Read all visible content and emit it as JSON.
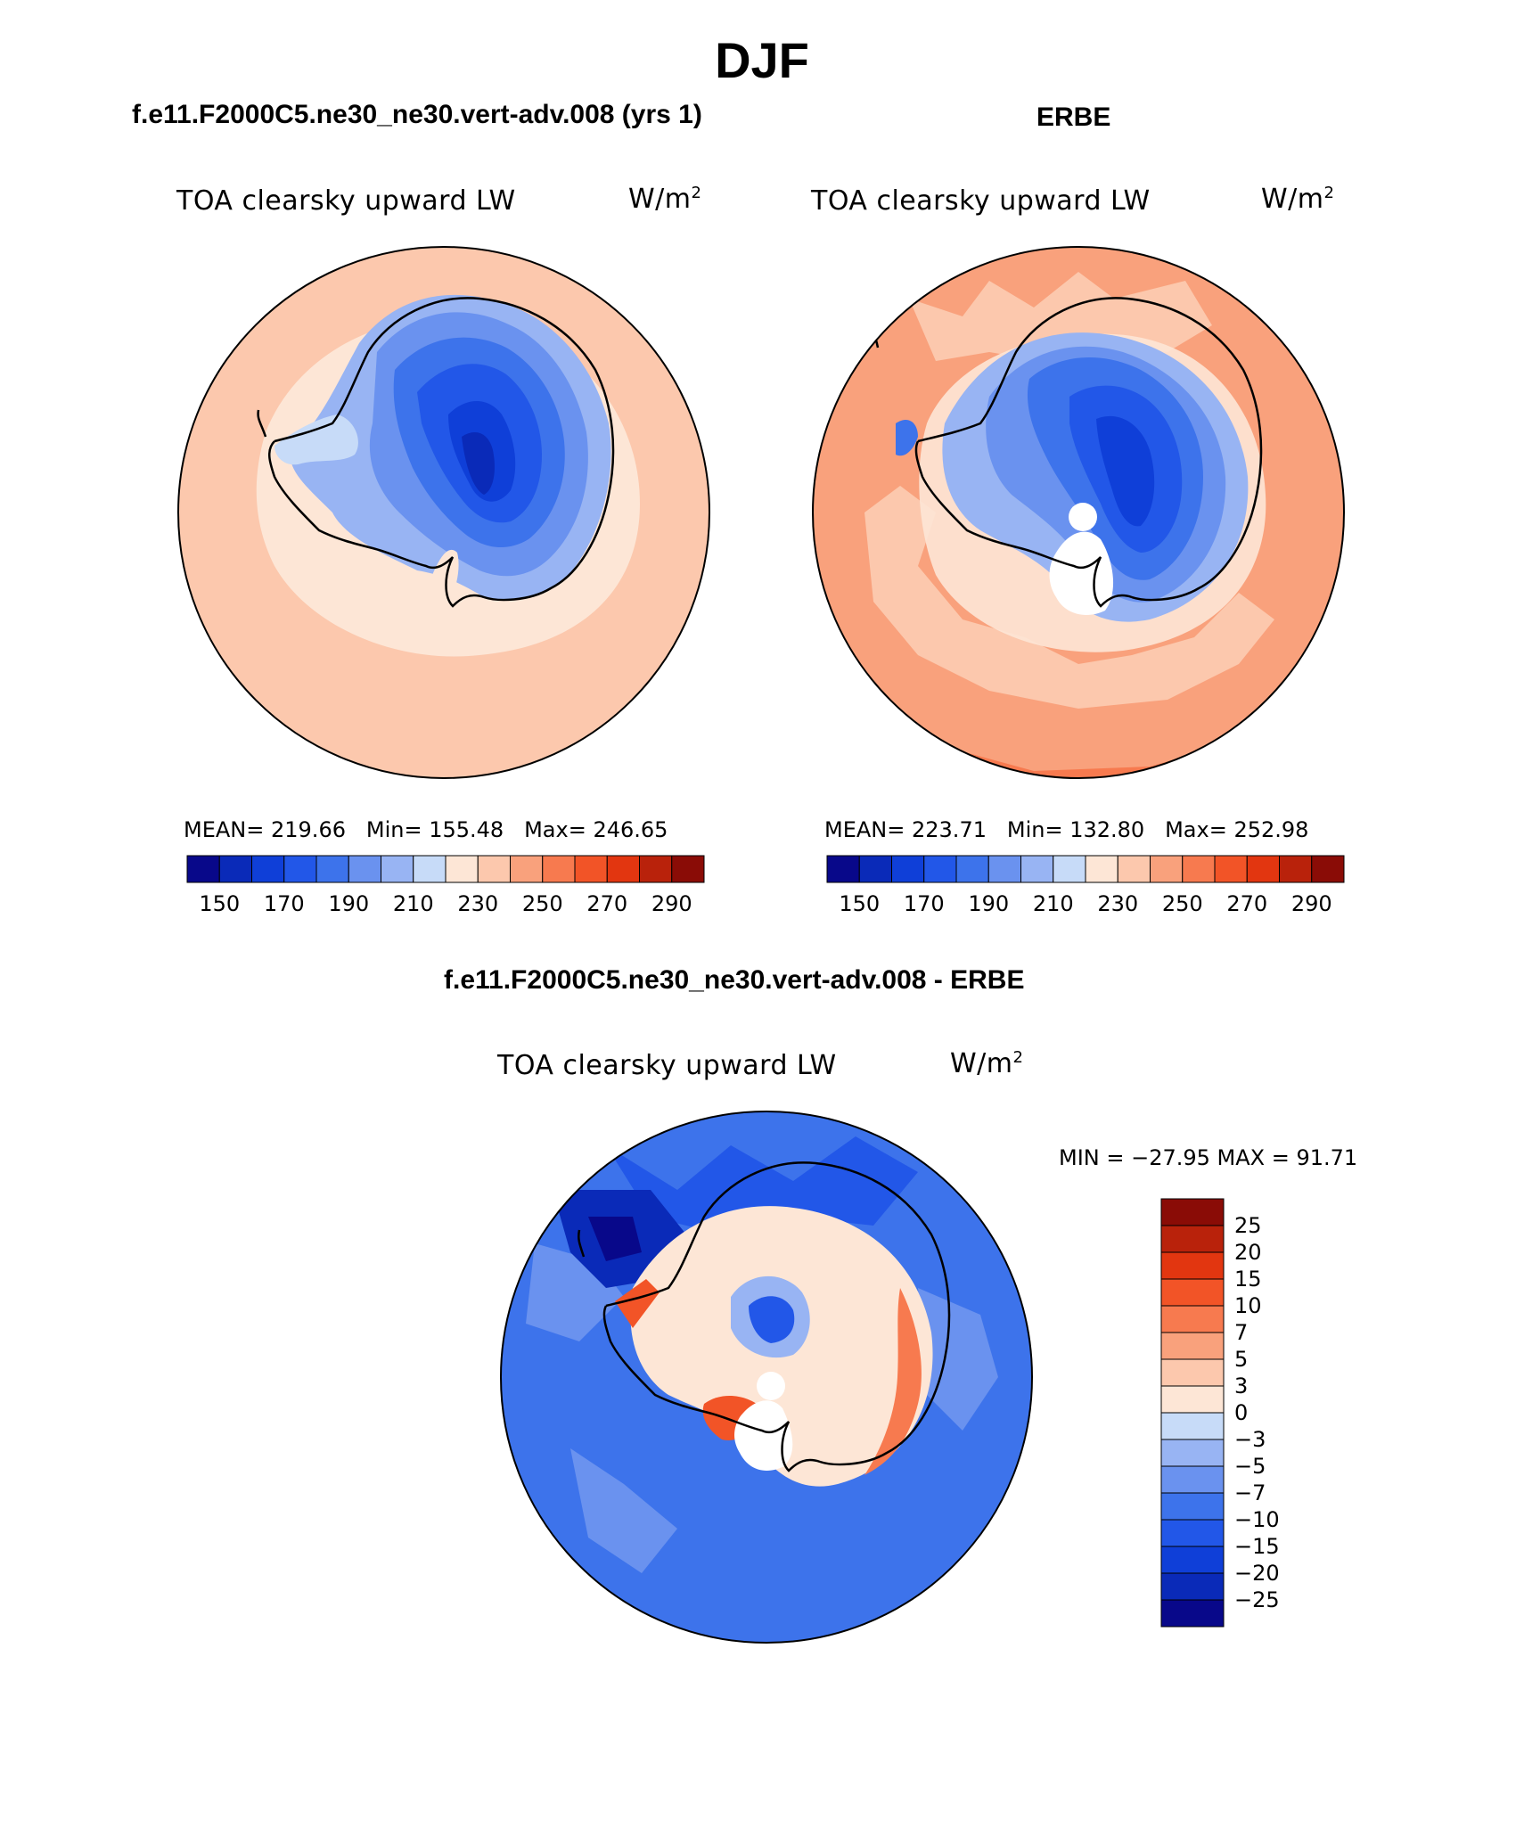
{
  "page_title": "DJF",
  "panels": [
    {
      "heading": "f.e11.F2000C5.ne30_ne30.vert-adv.008 (yrs 1)",
      "variable": "TOA clearsky upward LW",
      "units_base": "W/m",
      "units_exp": "2",
      "stats": {
        "mean_label": "MEAN=",
        "mean": "219.66",
        "min_label": "Min=",
        "min": "155.48",
        "max_label": "Max=",
        "max": "246.65"
      }
    },
    {
      "heading": "ERBE",
      "variable": "TOA clearsky upward LW",
      "units_base": "W/m",
      "units_exp": "2",
      "stats": {
        "mean_label": "MEAN=",
        "mean": "223.71",
        "min_label": "Min=",
        "min": "132.80",
        "max_label": "Max=",
        "max": "252.98"
      }
    },
    {
      "heading": "f.e11.F2000C5.ne30_ne30.vert-adv.008 - ERBE",
      "variable": "TOA clearsky upward LW",
      "units_base": "W/m",
      "units_exp": "2",
      "stats_text": "MIN = −27.95 MAX =  91.71"
    }
  ],
  "abs_colorbar": {
    "colors": [
      "#08088a",
      "#0a2ab8",
      "#0f3fd8",
      "#2257e8",
      "#3d73eb",
      "#6a92ef",
      "#98b4f3",
      "#c7dbf8",
      "#fde6d6",
      "#fcc8ad",
      "#f9a17c",
      "#f77a4f",
      "#f25427",
      "#e23610",
      "#b9220b",
      "#8a0c06"
    ],
    "tick_labels": [
      "150",
      "170",
      "190",
      "210",
      "230",
      "250",
      "270",
      "290"
    ]
  },
  "diff_colorbar": {
    "colors": [
      "#8a0c06",
      "#b9220b",
      "#e23610",
      "#f25427",
      "#f77a4f",
      "#f9a17c",
      "#fcc8ad",
      "#fde6d6",
      "#c7dbf8",
      "#98b4f3",
      "#6a92ef",
      "#3d73eb",
      "#2257e8",
      "#0f3fd8",
      "#0a2ab8",
      "#08088a"
    ],
    "tick_labels": [
      "25",
      "20",
      "15",
      "10",
      "7",
      "5",
      "3",
      "0",
      "−3",
      "−5",
      "−7",
      "−10",
      "−15",
      "−20",
      "−25"
    ]
  },
  "colors": {
    "ocean_warm": "#fcc8ad",
    "ocean_warmer": "#f9a17c",
    "ocean_hot": "#f77a4f",
    "land_light": "#fde6d6",
    "blue_1": "#c7dbf8",
    "blue_2": "#98b4f3",
    "blue_3": "#6a92ef",
    "blue_4": "#3d73eb",
    "blue_5": "#2257e8",
    "blue_6": "#0f3fd8",
    "blue_7": "#0a2ab8"
  }
}
